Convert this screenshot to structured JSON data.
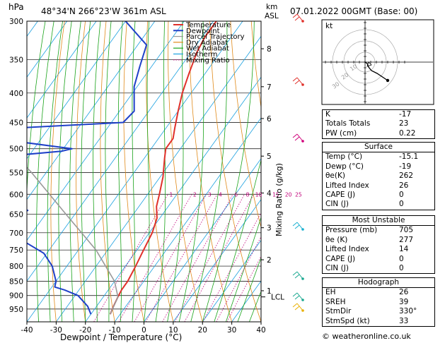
{
  "header": {
    "hpa_label": "hPa",
    "location": "48°34'N  266°23'W  361m  ASL",
    "km_label": "km",
    "asl_label": "ASL",
    "datetime": "07.01.2022  00GMT  (Base: 00)"
  },
  "legend": [
    {
      "label": "Temperature",
      "color": "#e0302a"
    },
    {
      "label": "Dewpoint",
      "color": "#1f40c8"
    },
    {
      "label": "Parcel Trajectory",
      "color": "#999999"
    },
    {
      "label": "Dry Adiabat",
      "color": "#e08a1a"
    },
    {
      "label": "Wet Adiabat",
      "color": "#1aa31a"
    },
    {
      "label": "Isotherm",
      "color": "#1aa0e0"
    },
    {
      "label": "Mixing Ratio",
      "color": "#c0007a"
    }
  ],
  "chart_data": {
    "type": "line",
    "title": "",
    "xlabel": "Dewpoint / Temperature (°C)",
    "ylabel": "hPa",
    "y2label": "Mixing Ratio (g/kg)",
    "xlim": [
      -40,
      40
    ],
    "ylim": [
      1000,
      300
    ],
    "y_scale": "log",
    "x_ticks": [
      -40,
      -30,
      -20,
      -10,
      0,
      10,
      20,
      30,
      40
    ],
    "pressure_ticks": [
      300,
      350,
      400,
      450,
      500,
      550,
      600,
      650,
      700,
      750,
      800,
      850,
      900,
      950
    ],
    "height_ticks": [
      {
        "km": "8",
        "p": 335
      },
      {
        "km": "7",
        "p": 390
      },
      {
        "km": "6",
        "p": 443
      },
      {
        "km": "5",
        "p": 515
      },
      {
        "km": "4",
        "p": 597
      },
      {
        "km": "3",
        "p": 686
      },
      {
        "km": "2",
        "p": 780
      },
      {
        "km": "1",
        "p": 883
      }
    ],
    "lcl": {
      "label": "LCL",
      "p": 905
    },
    "mixing_ratio_labels": [
      "1",
      "2",
      "3",
      "4",
      "6",
      "8",
      "10",
      "15",
      "20",
      "25"
    ],
    "mixing_ratio_values": [
      1,
      2,
      3,
      4,
      6,
      8,
      10,
      15,
      20,
      25
    ],
    "series": [
      {
        "name": "Temperature",
        "color": "#e0302a",
        "points": [
          [
            300,
            -49
          ],
          [
            320,
            -49
          ],
          [
            340,
            -48
          ],
          [
            370,
            -45.5
          ],
          [
            400,
            -43
          ],
          [
            430,
            -40
          ],
          [
            460,
            -37
          ],
          [
            480,
            -35
          ],
          [
            500,
            -35
          ],
          [
            520,
            -33
          ],
          [
            560,
            -29
          ],
          [
            600,
            -26
          ],
          [
            630,
            -24
          ],
          [
            660,
            -21
          ],
          [
            700,
            -19
          ],
          [
            760,
            -17.5
          ],
          [
            800,
            -16.5
          ],
          [
            850,
            -15.5
          ],
          [
            880,
            -15.5
          ],
          [
            905,
            -15
          ],
          [
            940,
            -14.2
          ],
          [
            970,
            -13.4
          ]
        ]
      },
      {
        "name": "Dewpoint",
        "color": "#1f40c8",
        "points": [
          [
            300,
            -80
          ],
          [
            330,
            -67
          ],
          [
            360,
            -64
          ],
          [
            390,
            -61
          ],
          [
            430,
            -55
          ],
          [
            450,
            -56
          ],
          [
            460,
            -90
          ],
          [
            480,
            -96
          ],
          [
            500,
            -67
          ],
          [
            505,
            -70
          ],
          [
            520,
            -96
          ],
          [
            580,
            -90
          ],
          [
            600,
            -92
          ],
          [
            610,
            -78
          ],
          [
            640,
            -67
          ],
          [
            660,
            -70
          ],
          [
            680,
            -66
          ],
          [
            700,
            -68
          ],
          [
            720,
            -62
          ],
          [
            760,
            -51
          ],
          [
            800,
            -45
          ],
          [
            850,
            -40
          ],
          [
            870,
            -39
          ],
          [
            880,
            -35
          ],
          [
            900,
            -29
          ],
          [
            940,
            -23
          ],
          [
            970,
            -20
          ]
        ]
      },
      {
        "name": "Parcel Trajectory",
        "color": "#999999",
        "points": [
          [
            460,
            -100
          ],
          [
            550,
            -75
          ],
          [
            650,
            -53
          ],
          [
            750,
            -34
          ],
          [
            850,
            -20
          ],
          [
            905,
            -15
          ],
          [
            970,
            -13.4
          ]
        ]
      }
    ]
  },
  "hodograph": {
    "kt_label": "kt",
    "ring_labels": [
      "10",
      "20",
      "30"
    ]
  },
  "indices": [
    {
      "label": "K",
      "value": "-17"
    },
    {
      "label": "Totals Totals",
      "value": "23"
    },
    {
      "label": "PW (cm)",
      "value": "0.22"
    }
  ],
  "surface": {
    "title": "Surface",
    "rows": [
      {
        "label": "Temp (°C)",
        "value": "-15.1"
      },
      {
        "label": "Dewp (°C)",
        "value": "-19"
      },
      {
        "label": "θe(K)",
        "value": "262"
      },
      {
        "label": "Lifted Index",
        "value": "26"
      },
      {
        "label": "CAPE (J)",
        "value": "0"
      },
      {
        "label": "CIN (J)",
        "value": "0"
      }
    ]
  },
  "most_unstable": {
    "title": "Most Unstable",
    "rows": [
      {
        "label": "Pressure (mb)",
        "value": "705"
      },
      {
        "label": "θe (K)",
        "value": "277"
      },
      {
        "label": "Lifted Index",
        "value": "14"
      },
      {
        "label": "CAPE (J)",
        "value": "0"
      },
      {
        "label": "CIN (J)",
        "value": "0"
      }
    ]
  },
  "hodograph_table": {
    "title": "Hodograph",
    "rows": [
      {
        "label": "EH",
        "value": "26"
      },
      {
        "label": "SREH",
        "value": "39"
      },
      {
        "label": "StmDir",
        "value": "330°"
      },
      {
        "label": "StmSpd (kt)",
        "value": "33"
      }
    ]
  },
  "copyright": "© weatheronline.co.uk"
}
